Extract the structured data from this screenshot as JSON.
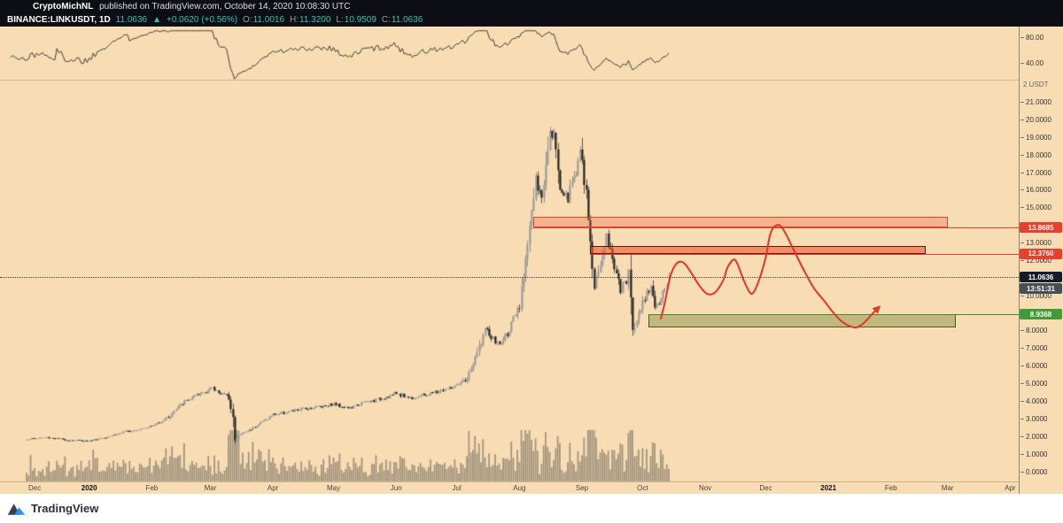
{
  "header": {
    "author": "CryptoMichNL",
    "published_text": "published on TradingView.com, October 14, 2020 10:08:30 UTC",
    "symbol": "BINANCE:LINKUSDT, 1D",
    "last_price": "11.0636",
    "direction_arrow": "▲",
    "change_text": "+0.0620 (+0.56%)",
    "ohlc": {
      "o_label": "O:",
      "o": "11.0016",
      "h_label": "H:",
      "h": "11.3200",
      "l_label": "L:",
      "l": "10.9509",
      "c_label": "C:",
      "c": "11.0636"
    }
  },
  "price_scale": {
    "unit_badge": "2 USDT",
    "osc_ticks": [
      {
        "label": "80.00",
        "value": 80
      },
      {
        "label": "40.00",
        "value": 40
      }
    ],
    "ticks": [
      "21.0000",
      "20.0000",
      "19.0000",
      "18.0000",
      "17.0000",
      "16.0000",
      "15.0000",
      "14.0000",
      "13.0000",
      "12.0000",
      "11.0000",
      "10.0000",
      "9.0000",
      "8.0000",
      "7.0000",
      "6.0000",
      "5.0000",
      "4.0000",
      "3.0000",
      "2.0000",
      "1.0000",
      "0.0000"
    ],
    "current_badge": {
      "text": "11.0636",
      "bg": "#161b2b"
    },
    "countdown_badge": {
      "text": "13:51:31",
      "bg": "#474e56"
    }
  },
  "time_scale": {
    "labels": [
      {
        "text": "Dec",
        "day": 4
      },
      {
        "text": "2020",
        "day": 31,
        "strong": true
      },
      {
        "text": "Feb",
        "day": 62
      },
      {
        "text": "Mar",
        "day": 91
      },
      {
        "text": "Apr",
        "day": 122
      },
      {
        "text": "May",
        "day": 152
      },
      {
        "text": "Jun",
        "day": 183
      },
      {
        "text": "Jul",
        "day": 213
      },
      {
        "text": "Aug",
        "day": 244
      },
      {
        "text": "Sep",
        "day": 275
      },
      {
        "text": "Oct",
        "day": 305
      },
      {
        "text": "Nov",
        "day": 336
      },
      {
        "text": "Dec",
        "day": 366
      },
      {
        "text": "2021",
        "day": 397,
        "strong": true
      },
      {
        "text": "Feb",
        "day": 428
      },
      {
        "text": "Mar",
        "day": 456
      },
      {
        "text": "Apr",
        "day": 487
      }
    ]
  },
  "footer": {
    "brand": "TradingView"
  },
  "chart_data": {
    "type": "candlestick",
    "symbol": "BINANCE:LINKUSDT",
    "interval": "1D",
    "day0": "2019-12-01",
    "days_total": 318,
    "y_axis": {
      "unit": "USDT",
      "min": 0,
      "max": 21.6,
      "tick_step": 1
    },
    "current_price": 11.0636,
    "last_candle": {
      "open": 11.0016,
      "high": 11.32,
      "low": 10.9509,
      "close": 11.0636
    },
    "price_waypoints": [
      [
        0,
        1.85
      ],
      [
        10,
        1.95
      ],
      [
        20,
        1.8
      ],
      [
        31,
        1.75
      ],
      [
        40,
        2.0
      ],
      [
        50,
        2.3
      ],
      [
        62,
        2.6
      ],
      [
        70,
        3.1
      ],
      [
        78,
        4.0
      ],
      [
        85,
        4.35
      ],
      [
        91,
        4.75
      ],
      [
        96,
        4.5
      ],
      [
        100,
        4.2
      ],
      [
        102,
        3.1
      ],
      [
        103,
        1.75
      ],
      [
        105,
        2.1
      ],
      [
        110,
        2.35
      ],
      [
        116,
        2.8
      ],
      [
        122,
        3.25
      ],
      [
        130,
        3.4
      ],
      [
        136,
        3.55
      ],
      [
        144,
        3.7
      ],
      [
        152,
        3.85
      ],
      [
        160,
        3.6
      ],
      [
        166,
        3.9
      ],
      [
        174,
        4.1
      ],
      [
        183,
        4.45
      ],
      [
        190,
        4.2
      ],
      [
        197,
        4.35
      ],
      [
        205,
        4.6
      ],
      [
        213,
        4.85
      ],
      [
        218,
        5.3
      ],
      [
        222,
        6.4
      ],
      [
        227,
        8.1
      ],
      [
        230,
        7.6
      ],
      [
        234,
        7.2
      ],
      [
        238,
        7.9
      ],
      [
        244,
        9.3
      ],
      [
        248,
        13.2
      ],
      [
        252,
        16.4
      ],
      [
        255,
        15.4
      ],
      [
        259,
        19.8
      ],
      [
        261,
        19.2
      ],
      [
        264,
        16.2
      ],
      [
        268,
        15.6
      ],
      [
        271,
        16.8
      ],
      [
        274,
        18.2
      ],
      [
        277,
        15.6
      ],
      [
        279,
        13.1
      ],
      [
        281,
        10.4
      ],
      [
        284,
        11.9
      ],
      [
        287,
        13.3
      ],
      [
        290,
        12.2
      ],
      [
        294,
        10.3
      ],
      [
        297,
        10.9
      ],
      [
        298,
        11.4
      ],
      [
        300,
        8.1
      ],
      [
        302,
        8.8
      ],
      [
        305,
        9.6
      ],
      [
        307,
        10.3
      ],
      [
        309,
        10.6
      ],
      [
        311,
        9.4
      ],
      [
        313,
        9.3
      ],
      [
        315,
        10.1
      ],
      [
        317,
        10.7
      ],
      [
        318,
        11.0636
      ]
    ],
    "zones": [
      {
        "id": "resistance-upper",
        "label": "13.8685",
        "price_top": 14.47,
        "price_bottom": 13.8685,
        "day_start": 251,
        "day_end": 456,
        "fill": "rgba(236,94,60,0.33)",
        "border": "#c94a30",
        "line_price": 13.8685,
        "line_color": "#e8402c",
        "badge_bg": "#e8402c"
      },
      {
        "id": "resistance-lower",
        "label": "12.3760",
        "price_top": 12.83,
        "price_bottom": 12.376,
        "day_start": 279,
        "day_end": 445,
        "fill": "rgba(233,85,49,0.58)",
        "border": "#4e1c10",
        "line_price": 12.376,
        "line_color": "#e8402c",
        "badge_bg": "#e8402c"
      },
      {
        "id": "support",
        "label": "8.9368",
        "price_top": 8.9368,
        "price_bottom": 8.18,
        "day_start": 308,
        "day_end": 460,
        "fill": "rgba(120,132,50,0.42)",
        "border": "#4c5822",
        "line_price": 8.9368,
        "line_color": "#3e8d2e",
        "badge_bg": "#3f9b35"
      }
    ],
    "prediction_path": [
      [
        314,
        8.7
      ],
      [
        316,
        9.6
      ],
      [
        319,
        11.2
      ],
      [
        322,
        11.85
      ],
      [
        325,
        11.9
      ],
      [
        328,
        11.5
      ],
      [
        333,
        10.6
      ],
      [
        337,
        10.1
      ],
      [
        341,
        10.2
      ],
      [
        345,
        10.9
      ],
      [
        347,
        11.6
      ],
      [
        350,
        12.05
      ],
      [
        352,
        11.8
      ],
      [
        355,
        10.9
      ],
      [
        358,
        10.2
      ],
      [
        360,
        10.2
      ],
      [
        363,
        11.0
      ],
      [
        366,
        12.2
      ],
      [
        368,
        13.4
      ],
      [
        370,
        13.9
      ],
      [
        373,
        14.0
      ],
      [
        376,
        13.5
      ],
      [
        379,
        12.8
      ],
      [
        382,
        12.1
      ],
      [
        386,
        11.2
      ],
      [
        390,
        10.4
      ],
      [
        395,
        9.7
      ],
      [
        399,
        9.1
      ],
      [
        403,
        8.6
      ],
      [
        407,
        8.3
      ],
      [
        411,
        8.2
      ],
      [
        415,
        8.5
      ],
      [
        419,
        9.0
      ],
      [
        422,
        9.35
      ]
    ],
    "oscillator": {
      "ticks": [
        80,
        40
      ],
      "style": "momentum-line"
    },
    "colors": {
      "background": "#f8ddb4",
      "up": "#9c9c9c",
      "down": "#202020",
      "wick_up": "#7a7a7a",
      "wick_down": "#3a3a3a",
      "volume": "rgba(60,60,60,0.45)",
      "oscillator": "#2d2d2d",
      "prediction": "#e93323",
      "current_line": "#3a3a3a"
    }
  }
}
